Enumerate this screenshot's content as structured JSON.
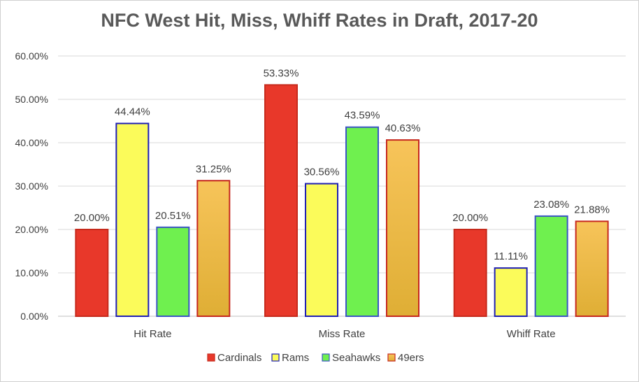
{
  "chart_data": {
    "type": "bar",
    "title": "NFC West Hit, Miss, Whiff Rates in Draft, 2017-20",
    "xlabel": "",
    "ylabel": "",
    "categories": [
      "Hit Rate",
      "Miss Rate",
      "Whiff Rate"
    ],
    "ylim": [
      0,
      60
    ],
    "yticks": [
      0,
      10,
      20,
      30,
      40,
      50,
      60
    ],
    "ytick_labels": [
      "0.00%",
      "10.00%",
      "20.00%",
      "30.00%",
      "40.00%",
      "50.00%",
      "60.00%"
    ],
    "grid": true,
    "legend_position": "bottom",
    "series": [
      {
        "name": "Cardinals",
        "values": [
          20.0,
          53.33,
          20.0
        ],
        "labels": [
          "20.00%",
          "53.33%",
          "20.00%"
        ],
        "fill": "#e8382a",
        "stroke": "#c62a1c"
      },
      {
        "name": "Rams",
        "values": [
          44.44,
          30.56,
          11.11
        ],
        "labels": [
          "44.44%",
          "30.56%",
          "11.11%"
        ],
        "fill": "#fbfb5a",
        "stroke": "#1f1fb4"
      },
      {
        "name": "Seahawks",
        "values": [
          20.51,
          43.59,
          23.08
        ],
        "labels": [
          "20.51%",
          "43.59%",
          "23.08%"
        ],
        "fill": "#6ff04f",
        "stroke": "#3b55c4"
      },
      {
        "name": "49ers",
        "values": [
          31.25,
          40.63,
          21.88
        ],
        "labels": [
          "31.25%",
          "40.63%",
          "21.88%"
        ],
        "fill": "gradient",
        "stroke": "#c6281e",
        "gradient": [
          "#f7c45a",
          "#dfae35"
        ]
      }
    ]
  }
}
